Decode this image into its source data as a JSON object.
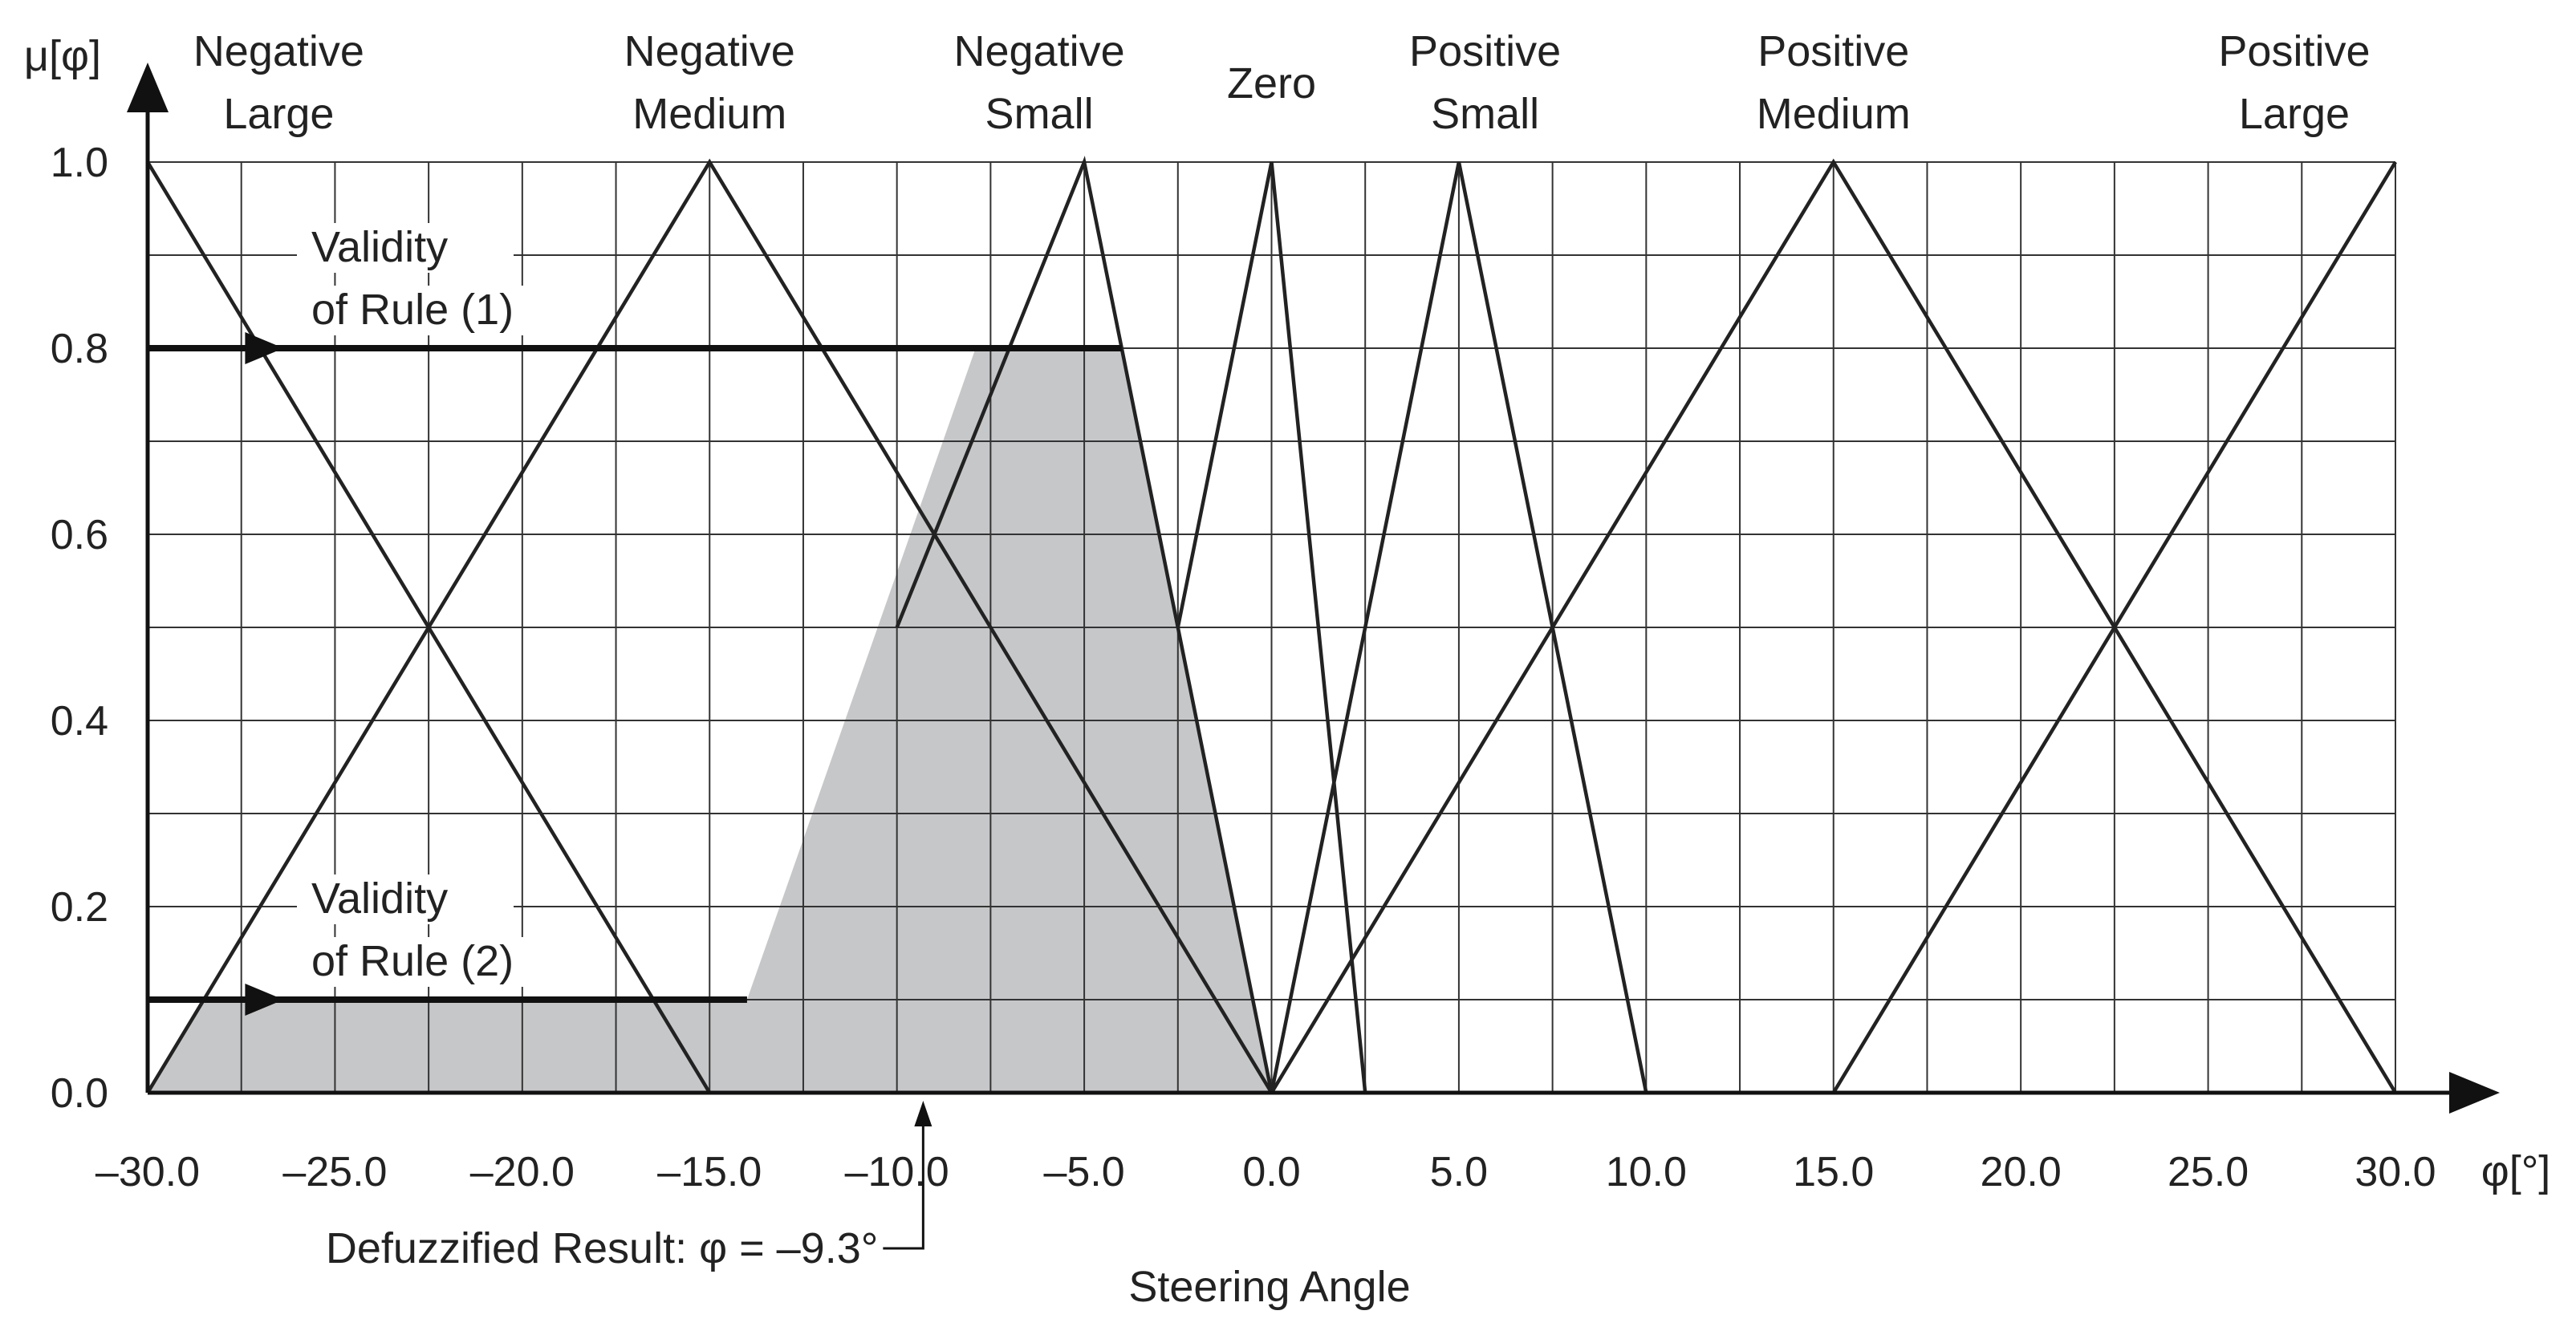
{
  "chart_data": {
    "type": "line",
    "title": "",
    "xlabel": "Steering Angle",
    "x_unit_label": "φ[°]",
    "ylabel": "μ[φ]",
    "xlim": [
      -30,
      30
    ],
    "ylim": [
      0,
      1
    ],
    "x_ticks": [
      -30,
      -25,
      -20,
      -15,
      -10,
      -5,
      0,
      5,
      10,
      15,
      20,
      25,
      30
    ],
    "x_tick_labels": [
      "–30.0",
      "–25.0",
      "–20.0",
      "–15.0",
      "–10.0",
      "–5.0",
      "0.0",
      "5.0",
      "10.0",
      "15.0",
      "20.0",
      "25.0",
      "30.0"
    ],
    "y_ticks": [
      0,
      0.2,
      0.4,
      0.6,
      0.8,
      1.0
    ],
    "y_tick_labels": [
      "0.0",
      "0.2",
      "0.4",
      "0.6",
      "0.8",
      "1.0"
    ],
    "grid": true,
    "grid_step_x": 2.5,
    "grid_step_y": 0.1,
    "series": [
      {
        "name": "Negative Large",
        "label_lines": [
          "Negative",
          "Large"
        ],
        "x": [
          -30,
          -15
        ],
        "y": [
          1,
          0
        ],
        "label_x": -26.5
      },
      {
        "name": "Negative Medium",
        "label_lines": [
          "Negative",
          "Medium"
        ],
        "x": [
          -30,
          -15,
          0
        ],
        "y": [
          0,
          1,
          0
        ],
        "label_x": -15
      },
      {
        "name": "Negative Small",
        "label_lines": [
          "Negative",
          "Small"
        ],
        "x": [
          -10,
          -5,
          0
        ],
        "y": [
          0.5,
          1,
          0
        ],
        "label_x": -6.2
      },
      {
        "name": "Zero",
        "label_lines": [
          "Zero"
        ],
        "x": [
          -2.5,
          0,
          2.5
        ],
        "y": [
          0.5,
          1,
          0
        ],
        "label_x": 0
      },
      {
        "name": "Positive Small",
        "label_lines": [
          "Positive",
          "Small"
        ],
        "x": [
          0,
          5,
          10
        ],
        "y": [
          0,
          1,
          0
        ],
        "label_x": 5.7
      },
      {
        "name": "Positive Medium",
        "label_lines": [
          "Positive",
          "Medium"
        ],
        "x": [
          0,
          15,
          30
        ],
        "y": [
          0,
          1,
          0
        ],
        "label_x": 15
      },
      {
        "name": "Positive Large",
        "label_lines": [
          "Positive",
          "Large"
        ],
        "x": [
          15,
          30
        ],
        "y": [
          0,
          1
        ],
        "label_x": 27.3
      }
    ],
    "shaded_area": {
      "name": "Aggregated output",
      "color": "#c6c7c9",
      "x": [
        -30,
        -28.5,
        -14.0,
        -7.9,
        -4.0,
        0,
        -30
      ],
      "y": [
        0,
        0.1,
        0.1,
        0.8,
        0.8,
        0,
        0
      ]
    },
    "rule_lines": [
      {
        "name": "Validity of Rule (1)",
        "label_lines": [
          "Validity",
          "of Rule (1)"
        ],
        "level": 0.8,
        "x_end": -4.0,
        "arrow_x": -26.5
      },
      {
        "name": "Validity of Rule (2)",
        "label_lines": [
          "Validity",
          "of Rule (2)"
        ],
        "level": 0.1,
        "x_end": -14.0,
        "arrow_x": -26.5
      }
    ],
    "annotation": {
      "text": "Defuzzified Result: φ = –9.3°",
      "x": -9.3
    }
  },
  "colors": {
    "line": "#222222",
    "grid": "#333333",
    "shade": "#c6c7c9",
    "background": "#ffffff"
  }
}
